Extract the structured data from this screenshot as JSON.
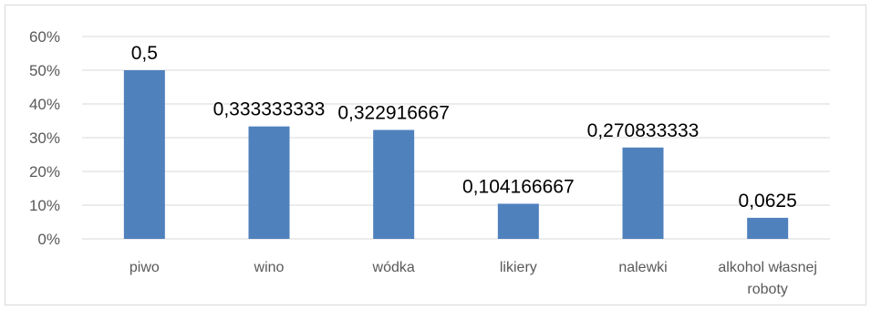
{
  "chart_data": {
    "type": "bar",
    "categories": [
      [
        "piwo"
      ],
      [
        "wino"
      ],
      [
        "wódka"
      ],
      [
        "likiery"
      ],
      [
        "nalewki"
      ],
      [
        "alkohol własnej",
        "roboty"
      ]
    ],
    "values": [
      0.5,
      0.333333333,
      0.322916667,
      0.104166667,
      0.270833333,
      0.0625
    ],
    "data_labels": [
      "0,5",
      "0,333333333",
      "0,322916667",
      "0,104166667",
      "0,270833333",
      "0,0625"
    ],
    "ytick_labels": [
      "0%",
      "10%",
      "20%",
      "30%",
      "40%",
      "50%",
      "60%"
    ],
    "ylim": [
      0,
      0.6
    ],
    "grid": true,
    "bar_color": "#4f81bd",
    "grid_color": "#d9d9d9"
  }
}
